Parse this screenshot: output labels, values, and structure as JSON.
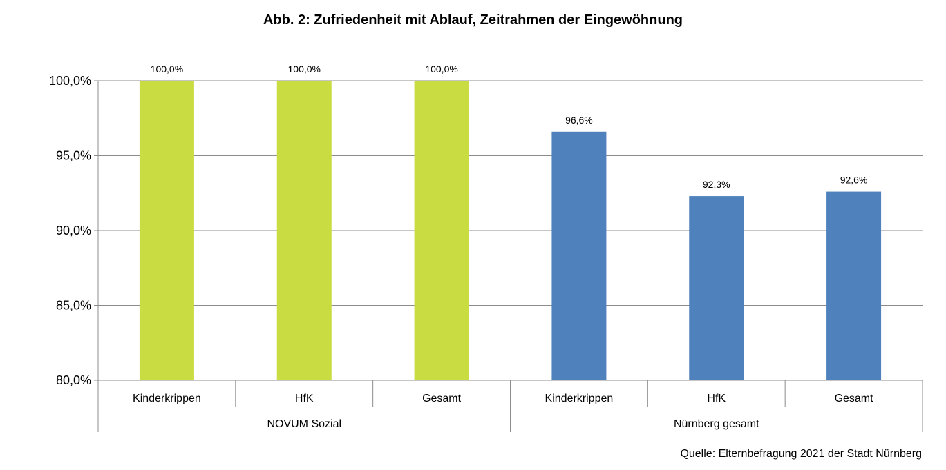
{
  "chart_data": {
    "type": "bar",
    "title": "Abb. 2: Zufriedenheit mit Ablauf, Zeitrahmen der Eingewöhnung",
    "xlabel": "",
    "ylabel": "",
    "ylim": [
      80,
      100
    ],
    "yticks": [
      80,
      85,
      90,
      95,
      100
    ],
    "ytick_labels": [
      "80,0%",
      "85,0%",
      "90,0%",
      "95,0%",
      "100,0%"
    ],
    "grid": true,
    "legend": "none",
    "categories": [
      "Kinderkrippen",
      "HfK",
      "Gesamt",
      "Kinderkrippen",
      "HfK",
      "Gesamt"
    ],
    "groups": [
      {
        "name": "NOVUM Sozial",
        "color": "#c9dc41",
        "start": 0,
        "count": 3
      },
      {
        "name": "Nürnberg gesamt",
        "color": "#4f81bd",
        "start": 3,
        "count": 3
      }
    ],
    "values": [
      100.0,
      100.0,
      100.0,
      96.6,
      92.3,
      92.6
    ],
    "data_labels": [
      "100,0%",
      "100,0%",
      "100,0%",
      "96,6%",
      "92,3%",
      "92,6%"
    ]
  },
  "source": "Quelle: Elternbefragung 2021 der Stadt Nürnberg"
}
